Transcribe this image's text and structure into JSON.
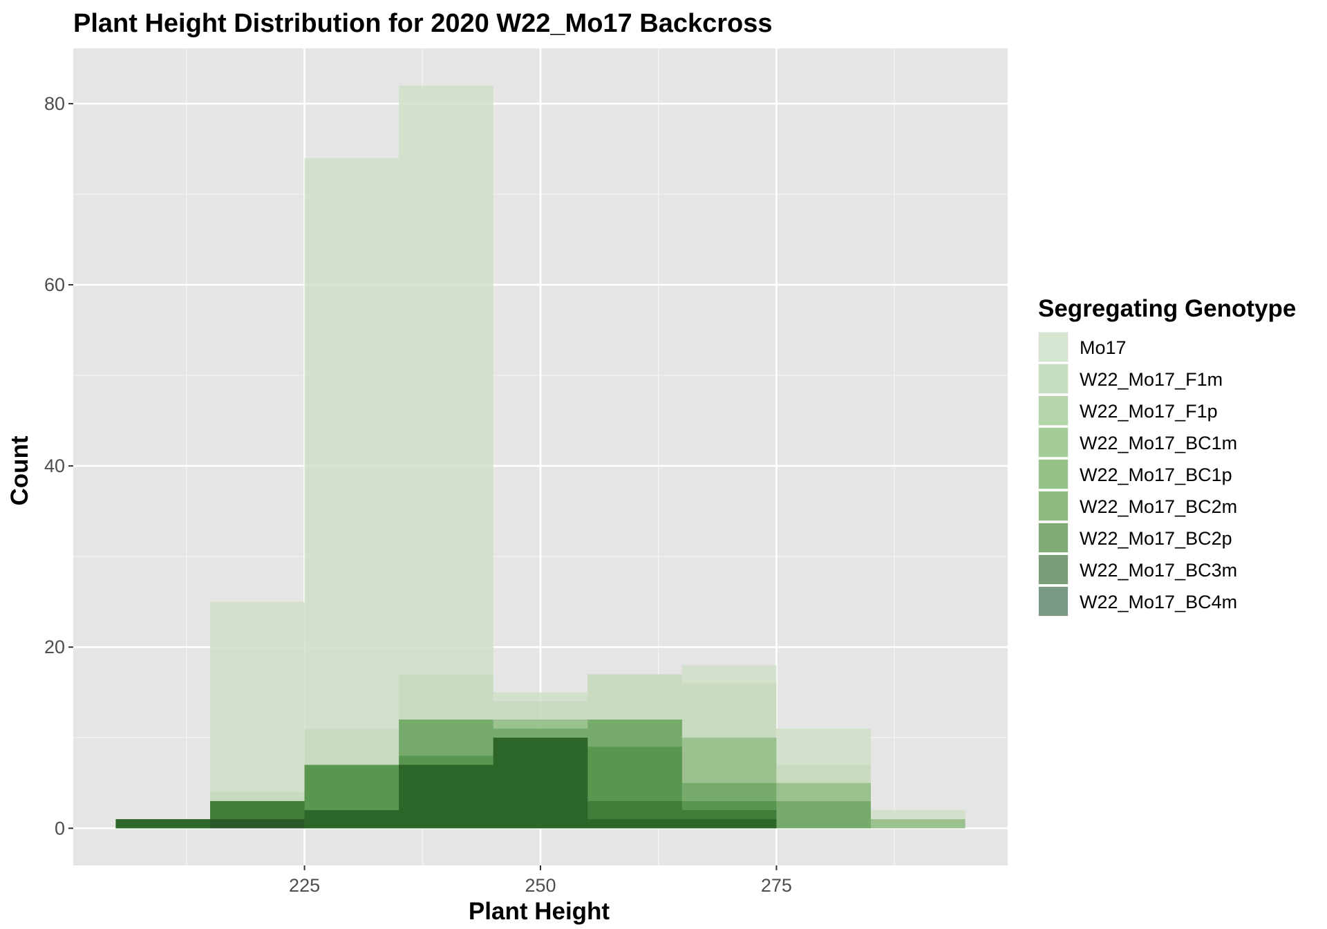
{
  "chart_data": {
    "type": "bar",
    "title": "Plant Height Distribution for 2020 W22_Mo17 Backcross",
    "xlabel": "Plant Height",
    "ylabel": "Count",
    "xlim": [
      200.5,
      299.5
    ],
    "ylim": [
      -4.1,
      86.1
    ],
    "x_ticks": [
      225,
      250,
      275
    ],
    "y_ticks": [
      0,
      20,
      40,
      60,
      80
    ],
    "grid": true,
    "bin_width": 10,
    "bin_centers": [
      210,
      220,
      230,
      240,
      250,
      260,
      270,
      280,
      290
    ],
    "legend_title": "Segregating Genotype",
    "legend_position": "right",
    "series": [
      {
        "name": "Mo17",
        "color": "#d4e6cf",
        "values": [
          0,
          25,
          74,
          82,
          15,
          17,
          18,
          11,
          2
        ]
      },
      {
        "name": "W22_Mo17_F1m",
        "color": "#c7dfc0",
        "values": [
          0,
          4,
          11,
          17,
          14,
          17,
          16,
          7,
          1
        ]
      },
      {
        "name": "W22_Mo17_F1p",
        "color": "#b5d6aa",
        "values": [
          1,
          3,
          7,
          12,
          12,
          12,
          10,
          5,
          1
        ]
      },
      {
        "name": "W22_Mo17_BC1m",
        "color": "#a4cc97",
        "values": [
          1,
          3,
          7,
          12,
          12,
          12,
          10,
          5,
          1
        ]
      },
      {
        "name": "W22_Mo17_BC1p",
        "color": "#95c286",
        "values": [
          1,
          3,
          7,
          12,
          11,
          12,
          5,
          3,
          0
        ]
      },
      {
        "name": "W22_Mo17_BC2m",
        "color": "#8bba7c",
        "values": [
          1,
          3,
          7,
          8,
          10,
          9,
          3,
          0,
          0
        ]
      },
      {
        "name": "W22_Mo17_BC2p",
        "color": "#80ab75",
        "values": [
          1,
          3,
          2,
          7,
          10,
          3,
          2,
          0,
          0
        ]
      },
      {
        "name": "W22_Mo17_BC3m",
        "color": "#7a9e78",
        "values": [
          1,
          1,
          2,
          7,
          10,
          1,
          1,
          0,
          0
        ]
      },
      {
        "name": "W22_Mo17_BC4m",
        "color": "#7a9a83",
        "values": [
          0,
          1,
          0,
          0,
          0,
          0,
          0,
          0,
          0
        ]
      }
    ]
  }
}
